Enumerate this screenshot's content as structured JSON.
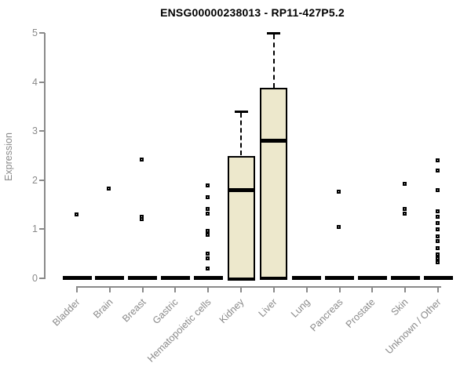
{
  "chart_data": {
    "type": "boxplot",
    "title": "ENSG00000238013 - RP11-427P5.2",
    "ylabel": "Expression",
    "ylim": [
      0,
      5
    ],
    "yticks": [
      0,
      1,
      2,
      3,
      4,
      5
    ],
    "grid": false,
    "legend_position": "none",
    "categories": [
      "Bladder",
      "Brain",
      "Breast",
      "Gastric",
      "Hematopoietic cells",
      "Kidney",
      "Liver",
      "Lung",
      "Pancreas",
      "Prostate",
      "Skin",
      "Unknown / Other"
    ],
    "boxes": [
      {
        "category": "Bladder",
        "min": 0,
        "q1": 0,
        "median": 0,
        "q3": 0,
        "whisker_high": 0,
        "outliers": [
          1.3
        ]
      },
      {
        "category": "Brain",
        "min": 0,
        "q1": 0,
        "median": 0,
        "q3": 0,
        "whisker_high": 0,
        "outliers": [
          1.83
        ]
      },
      {
        "category": "Breast",
        "min": 0,
        "q1": 0,
        "median": 0,
        "q3": 0,
        "whisker_high": 0,
        "outliers": [
          2.42,
          1.25,
          1.21
        ]
      },
      {
        "category": "Gastric",
        "min": 0,
        "q1": 0,
        "median": 0,
        "q3": 0,
        "whisker_high": 0,
        "outliers": []
      },
      {
        "category": "Hematopoietic cells",
        "min": 0,
        "q1": 0,
        "median": 0,
        "q3": 0,
        "whisker_high": 0,
        "outliers": [
          1.9,
          1.65,
          1.42,
          1.32,
          0.97,
          0.88,
          0.5,
          0.4,
          0.2
        ]
      },
      {
        "category": "Kidney",
        "min": 0,
        "q1": 0,
        "median": 1.8,
        "q3": 2.5,
        "whisker_high": 3.4,
        "outliers": []
      },
      {
        "category": "Liver",
        "min": 0,
        "q1": 0,
        "median": 2.8,
        "q3": 3.88,
        "whisker_high": 5.0,
        "outliers": []
      },
      {
        "category": "Lung",
        "min": 0,
        "q1": 0,
        "median": 0,
        "q3": 0,
        "whisker_high": 0,
        "outliers": []
      },
      {
        "category": "Pancreas",
        "min": 0,
        "q1": 0,
        "median": 0,
        "q3": 0,
        "whisker_high": 0,
        "outliers": [
          1.77,
          1.05
        ]
      },
      {
        "category": "Prostate",
        "min": 0,
        "q1": 0,
        "median": 0,
        "q3": 0,
        "whisker_high": 0,
        "outliers": []
      },
      {
        "category": "Skin",
        "min": 0,
        "q1": 0,
        "median": 0,
        "q3": 0,
        "whisker_high": 0,
        "outliers": [
          1.93,
          1.42,
          1.32
        ]
      },
      {
        "category": "Unknown / Other",
        "min": 0,
        "q1": 0,
        "median": 0,
        "q3": 0,
        "whisker_high": 0,
        "outliers": [
          2.4,
          2.2,
          1.8,
          1.37,
          1.26,
          1.13,
          1.0,
          0.85,
          0.76,
          0.61,
          0.48,
          0.4,
          0.32
        ]
      }
    ],
    "colors": {
      "background": "#ffffff",
      "box_fill": "#ede8cc",
      "box_border": "#000000",
      "median": "#000000",
      "outlier": "#000000",
      "axis": "#8a8a8a",
      "tick_label": "#8a8a8a",
      "title": "#000000"
    }
  }
}
